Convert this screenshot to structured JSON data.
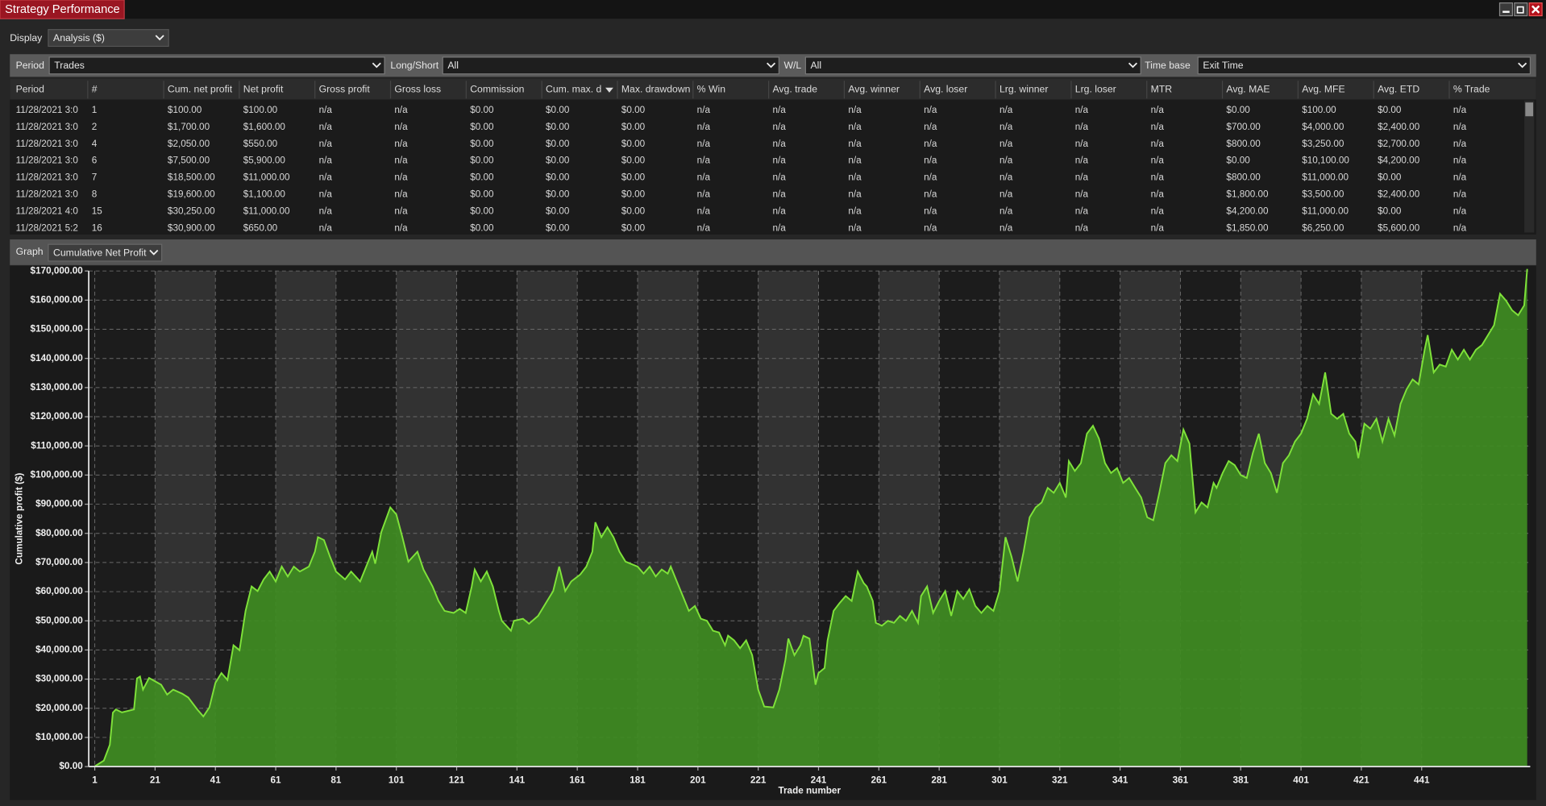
{
  "window": {
    "title": "Strategy Performance"
  },
  "display": {
    "label": "Display",
    "value": "Analysis ($)"
  },
  "filters": [
    {
      "label": "Period",
      "value": "Trades"
    },
    {
      "label": "Long/Short",
      "value": "All"
    },
    {
      "label": "W/L",
      "value": "All"
    },
    {
      "label": "Time base",
      "value": "Exit Time"
    }
  ],
  "table": {
    "columns": [
      "Period",
      "#",
      "Cum. net profit",
      "Net profit",
      "Gross profit",
      "Gross loss",
      "Commission",
      "Cum. max. d",
      "Max. drawdown",
      "% Win",
      "Avg. trade",
      "Avg. winner",
      "Avg. loser",
      "Lrg. winner",
      "Lrg. loser",
      "MTR",
      "Avg. MAE",
      "Avg. MFE",
      "Avg. ETD",
      "% Trade"
    ],
    "rows": [
      [
        "11/28/2021 3:0",
        "1",
        "$100.00",
        "$100.00",
        "n/a",
        "n/a",
        "$0.00",
        "$0.00",
        "$0.00",
        "n/a",
        "n/a",
        "n/a",
        "n/a",
        "n/a",
        "n/a",
        "n/a",
        "$0.00",
        "$100.00",
        "$0.00",
        "n/a"
      ],
      [
        "11/28/2021 3:0",
        "2",
        "$1,700.00",
        "$1,600.00",
        "n/a",
        "n/a",
        "$0.00",
        "$0.00",
        "$0.00",
        "n/a",
        "n/a",
        "n/a",
        "n/a",
        "n/a",
        "n/a",
        "n/a",
        "$700.00",
        "$4,000.00",
        "$2,400.00",
        "n/a"
      ],
      [
        "11/28/2021 3:0",
        "4",
        "$2,050.00",
        "$550.00",
        "n/a",
        "n/a",
        "$0.00",
        "$0.00",
        "$0.00",
        "n/a",
        "n/a",
        "n/a",
        "n/a",
        "n/a",
        "n/a",
        "n/a",
        "$800.00",
        "$3,250.00",
        "$2,700.00",
        "n/a"
      ],
      [
        "11/28/2021 3:0",
        "6",
        "$7,500.00",
        "$5,900.00",
        "n/a",
        "n/a",
        "$0.00",
        "$0.00",
        "$0.00",
        "n/a",
        "n/a",
        "n/a",
        "n/a",
        "n/a",
        "n/a",
        "n/a",
        "$0.00",
        "$10,100.00",
        "$4,200.00",
        "n/a"
      ],
      [
        "11/28/2021 3:0",
        "7",
        "$18,500.00",
        "$11,000.00",
        "n/a",
        "n/a",
        "$0.00",
        "$0.00",
        "$0.00",
        "n/a",
        "n/a",
        "n/a",
        "n/a",
        "n/a",
        "n/a",
        "n/a",
        "$800.00",
        "$11,000.00",
        "$0.00",
        "n/a"
      ],
      [
        "11/28/2021 3:0",
        "8",
        "$19,600.00",
        "$1,100.00",
        "n/a",
        "n/a",
        "$0.00",
        "$0.00",
        "$0.00",
        "n/a",
        "n/a",
        "n/a",
        "n/a",
        "n/a",
        "n/a",
        "n/a",
        "$1,800.00",
        "$3,500.00",
        "$2,400.00",
        "n/a"
      ],
      [
        "11/28/2021 4:0",
        "15",
        "$30,250.00",
        "$11,000.00",
        "n/a",
        "n/a",
        "$0.00",
        "$0.00",
        "$0.00",
        "n/a",
        "n/a",
        "n/a",
        "n/a",
        "n/a",
        "n/a",
        "n/a",
        "$4,200.00",
        "$11,000.00",
        "$0.00",
        "n/a"
      ],
      [
        "11/28/2021 5:2",
        "16",
        "$30,900.00",
        "$650.00",
        "n/a",
        "n/a",
        "$0.00",
        "$0.00",
        "$0.00",
        "n/a",
        "n/a",
        "n/a",
        "n/a",
        "n/a",
        "n/a",
        "n/a",
        "$1,850.00",
        "$6,250.00",
        "$5,600.00",
        "n/a"
      ]
    ]
  },
  "graph": {
    "label": "Graph",
    "value": "Cumulative Net Profit"
  },
  "chart_data": {
    "type": "area",
    "y_label": "Cumulative profit ($)",
    "x_label": "Trade number",
    "color": "#3f8c22",
    "line_color": "#7fe23a",
    "grid": true,
    "x": [
      1,
      4,
      6,
      7,
      8,
      10,
      14,
      15,
      16,
      17,
      19,
      23,
      25,
      27,
      30,
      32,
      35,
      37,
      39,
      41,
      43,
      45,
      47,
      49,
      51,
      53,
      55,
      57,
      59,
      61,
      63,
      65,
      67,
      69,
      72,
      74,
      75,
      77,
      79,
      81,
      84,
      86,
      89,
      91,
      93,
      94,
      96,
      99,
      101,
      103,
      105,
      108,
      110,
      113,
      115,
      117,
      120,
      122,
      124,
      126,
      127,
      129,
      131,
      133,
      135,
      136,
      139,
      140,
      143,
      145,
      148,
      151,
      153,
      155,
      157,
      159,
      162,
      164,
      166,
      167,
      169,
      171,
      173,
      175,
      177,
      181,
      183,
      185,
      187,
      189,
      191,
      192,
      194,
      196,
      198,
      200,
      202,
      204,
      206,
      208,
      210,
      211,
      213,
      215,
      217,
      219,
      221,
      223,
      226,
      228,
      230,
      231,
      233,
      235,
      236,
      238,
      240,
      241,
      243,
      244,
      246,
      248,
      250,
      252,
      254,
      256,
      257,
      259,
      260,
      262,
      264,
      266,
      268,
      270,
      272,
      274,
      275,
      277,
      279,
      281,
      283,
      285,
      287,
      289,
      291,
      293,
      295,
      297,
      299,
      301,
      303,
      305,
      307,
      309,
      311,
      313,
      315,
      317,
      319,
      321,
      323,
      324,
      326,
      328,
      330,
      332,
      334,
      336,
      338,
      340,
      342,
      344,
      346,
      348,
      350,
      352,
      354,
      356,
      358,
      360,
      362,
      364,
      366,
      368,
      370,
      372,
      373,
      375,
      377,
      379,
      381,
      383,
      385,
      387,
      389,
      391,
      393,
      395,
      397,
      399,
      401,
      403,
      405,
      407,
      409,
      411,
      413,
      415,
      417,
      419,
      420,
      422,
      424,
      426,
      428,
      430,
      432,
      434,
      436,
      438,
      440,
      442,
      443,
      445,
      447,
      449,
      451,
      453,
      455,
      457,
      459,
      461,
      463,
      465,
      467,
      469,
      471,
      473,
      475,
      476
    ],
    "values": [
      100,
      2050,
      7500,
      18500,
      19600,
      18600,
      19600,
      30250,
      30900,
      26400,
      30400,
      28100,
      24700,
      26400,
      25000,
      23700,
      19600,
      17200,
      20300,
      28700,
      32100,
      29700,
      41600,
      39900,
      53400,
      61800,
      60200,
      64200,
      66900,
      63500,
      68600,
      65200,
      68600,
      66900,
      68600,
      73700,
      78700,
      77700,
      72000,
      66900,
      64200,
      66900,
      63500,
      68600,
      73700,
      69600,
      80400,
      88900,
      86500,
      78700,
      70300,
      73700,
      67600,
      61800,
      56800,
      53400,
      52700,
      54100,
      52700,
      61800,
      67600,
      63500,
      66900,
      61800,
      53400,
      50000,
      46600,
      50000,
      50700,
      49000,
      51700,
      56800,
      60200,
      68600,
      60200,
      63500,
      65900,
      68600,
      73700,
      83800,
      78700,
      82100,
      78700,
      73700,
      70300,
      68600,
      66200,
      68600,
      65200,
      67600,
      66200,
      68600,
      63500,
      58500,
      53400,
      55100,
      50700,
      50000,
      46600,
      46000,
      41600,
      44900,
      43300,
      40600,
      43300,
      38200,
      26400,
      20600,
      20300,
      26400,
      36500,
      43900,
      38200,
      41600,
      44900,
      43900,
      28100,
      32100,
      33800,
      43300,
      53400,
      56100,
      58500,
      56800,
      66900,
      62900,
      61800,
      56800,
      49300,
      48300,
      50000,
      49300,
      51700,
      50000,
      53400,
      49300,
      58500,
      61800,
      52700,
      56800,
      60200,
      51700,
      60200,
      57500,
      60800,
      55100,
      52700,
      55100,
      53400,
      60200,
      78700,
      72000,
      63500,
      73700,
      85500,
      88900,
      90600,
      95600,
      93900,
      97300,
      92300,
      104800,
      101400,
      104100,
      114200,
      116900,
      112500,
      104100,
      100700,
      102400,
      97300,
      99000,
      95600,
      92300,
      85500,
      84500,
      93900,
      104100,
      106800,
      104800,
      115600,
      110800,
      87200,
      90600,
      88900,
      97300,
      95600,
      100700,
      104800,
      103400,
      100000,
      99000,
      107500,
      114200,
      104100,
      100700,
      93900,
      104100,
      106800,
      111500,
      114200,
      119300,
      127700,
      124400,
      135200,
      121000,
      119300,
      121000,
      114200,
      111500,
      105800,
      117600,
      115900,
      119300,
      111500,
      119300,
      113600,
      124400,
      129400,
      132800,
      131100,
      143000,
      148000,
      135200,
      137900,
      137200,
      143000,
      139600,
      143000,
      139600,
      143000,
      144600,
      148000,
      151400,
      162200,
      159800,
      156500,
      154800,
      158200,
      170700
    ],
    "xlim": [
      -1,
      477
    ],
    "xticks": [
      1,
      21,
      41,
      61,
      81,
      101,
      121,
      141,
      161,
      181,
      201,
      221,
      241,
      261,
      281,
      301,
      321,
      341,
      361,
      381,
      401,
      421,
      441
    ],
    "ylim": [
      0,
      170000
    ],
    "yticks": [
      {
        "value": 0,
        "label": "$0.00"
      },
      {
        "value": 10000,
        "label": "$10,000.00"
      },
      {
        "value": 20000,
        "label": "$20,000.00"
      },
      {
        "value": 30000,
        "label": "$30,000.00"
      },
      {
        "value": 40000,
        "label": "$40,000.00"
      },
      {
        "value": 50000,
        "label": "$50,000.00"
      },
      {
        "value": 60000,
        "label": "$60,000.00"
      },
      {
        "value": 70000,
        "label": "$70,000.00"
      },
      {
        "value": 80000,
        "label": "$80,000.00"
      },
      {
        "value": 90000,
        "label": "$90,000.00"
      },
      {
        "value": 100000,
        "label": "$100,000.00"
      },
      {
        "value": 110000,
        "label": "$110,000.00"
      },
      {
        "value": 120000,
        "label": "$120,000.00"
      },
      {
        "value": 130000,
        "label": "$130,000.00"
      },
      {
        "value": 140000,
        "label": "$140,000.00"
      },
      {
        "value": 150000,
        "label": "$150,000.00"
      },
      {
        "value": 160000,
        "label": "$160,000.00"
      },
      {
        "value": 170000,
        "label": "$170,000.00"
      }
    ]
  }
}
